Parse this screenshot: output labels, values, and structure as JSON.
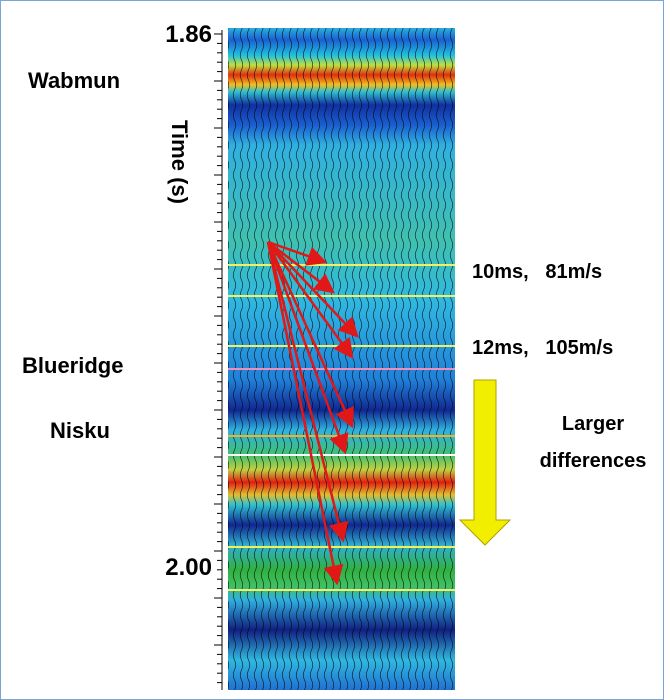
{
  "axis": {
    "top_label": "1.86",
    "bottom_label": "2.00",
    "title": "Time (s)"
  },
  "horizons": [
    "Wabmun",
    "Blueridge",
    "Nisku"
  ],
  "annotations": [
    "10ms,   81m/s",
    "12ms,   105m/s"
  ],
  "trend_label": [
    "Larger",
    "differences"
  ]
}
